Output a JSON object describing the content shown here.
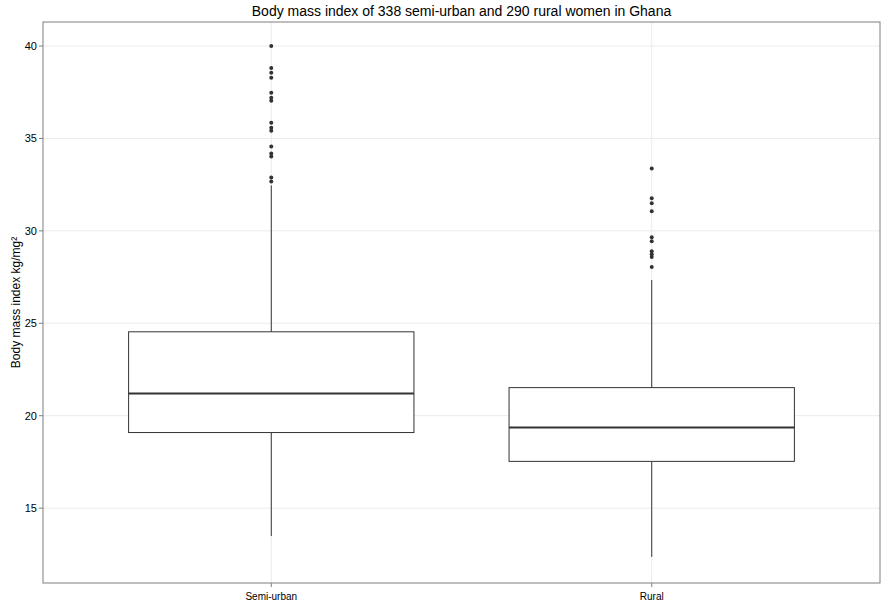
{
  "chart_data": {
    "type": "box",
    "title": "Body mass index of 338 semi-urban and 290 rural women in Ghana",
    "y_label": "Body mass index kg/mg²",
    "categories": [
      "Semi-urban",
      "Rural"
    ],
    "boxes": [
      {
        "min": 13.49,
        "q1": 19.09,
        "median": 21.2,
        "q3": 24.54,
        "max": 32.46,
        "outliers": [
          40.0,
          38.81,
          38.55,
          38.28,
          37.47,
          37.2,
          37.04,
          35.85,
          35.58,
          35.42,
          34.56,
          34.18,
          34.02,
          32.89,
          32.67
        ]
      },
      {
        "min": 12.36,
        "q1": 17.53,
        "median": 19.36,
        "q3": 21.52,
        "max": 27.34,
        "outliers": [
          33.37,
          31.76,
          31.49,
          31.06,
          29.66,
          29.44,
          28.9,
          28.74,
          28.58,
          28.04
        ]
      }
    ],
    "ylim": [
      10.95,
      41.3
    ],
    "yticks": [
      15,
      20,
      25,
      30,
      35,
      40
    ],
    "grid": true
  }
}
